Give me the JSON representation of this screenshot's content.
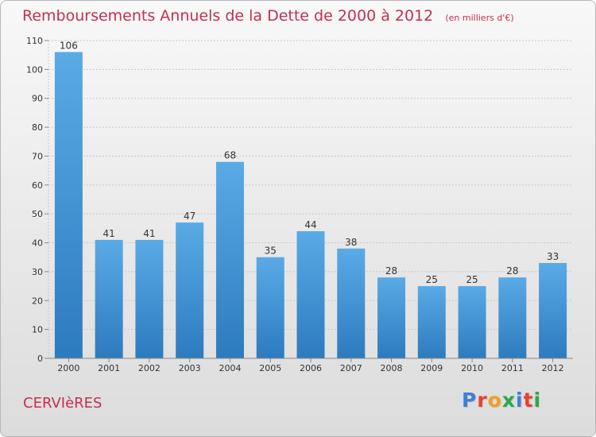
{
  "title": "Remboursements Annuels de la Dette de 2000 à 2012",
  "unit_note": "(en milliers d'€)",
  "commune": "CERVIèRES",
  "logo_text": "Proxiti",
  "logo_colors": [
    "#3f7fd6",
    "#e8402f",
    "#f0a020",
    "#2aa84a",
    "#3f7fd6",
    "#e8402f",
    "#2aa84a"
  ],
  "colors": {
    "title": "#c42f52",
    "bar_light": "#5aaae6",
    "bar_dark": "#2d7bbf",
    "grid": "#c8c8c8",
    "axis_text": "#333333"
  },
  "chart_data": {
    "type": "bar",
    "title": "Remboursements Annuels de la Dette de 2000 à 2012",
    "subtitle": "(en milliers d'€)",
    "xlabel": "",
    "ylabel": "",
    "categories": [
      "2000",
      "2001",
      "2002",
      "2003",
      "2004",
      "2005",
      "2006",
      "2007",
      "2008",
      "2009",
      "2010",
      "2011",
      "2012"
    ],
    "values": [
      106,
      41,
      41,
      47,
      68,
      35,
      44,
      38,
      28,
      25,
      25,
      28,
      33
    ],
    "ylim": [
      0,
      110
    ],
    "yticks": [
      0,
      10,
      20,
      30,
      40,
      50,
      60,
      70,
      80,
      90,
      100,
      110
    ],
    "grid": true,
    "data_labels": true
  }
}
